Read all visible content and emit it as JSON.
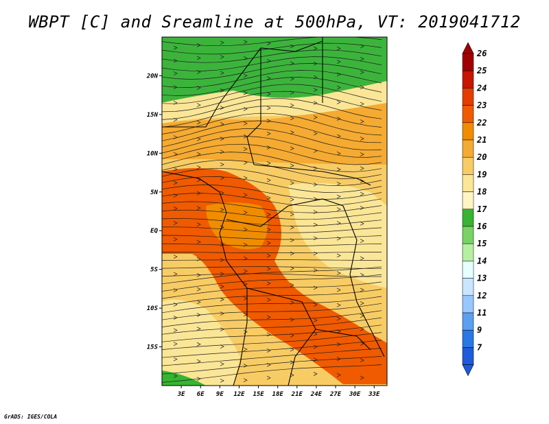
{
  "title": "WBPT [C] and Sreamline at 500hPa, VT: 2019041712",
  "footer": "GrADS: IGES/COLA",
  "map": {
    "lon_range": [
      0,
      35
    ],
    "lat_range": [
      -20,
      25
    ],
    "lat_ticks": [
      {
        "value": 20,
        "label": "20N"
      },
      {
        "value": 15,
        "label": "15N"
      },
      {
        "value": 10,
        "label": "10N"
      },
      {
        "value": 5,
        "label": "5N"
      },
      {
        "value": 0,
        "label": "EQ"
      },
      {
        "value": -5,
        "label": "5S"
      },
      {
        "value": -10,
        "label": "10S"
      },
      {
        "value": -15,
        "label": "15S"
      }
    ],
    "lon_ticks": [
      {
        "value": 3,
        "label": "3E"
      },
      {
        "value": 6,
        "label": "6E"
      },
      {
        "value": 9,
        "label": "9E"
      },
      {
        "value": 12,
        "label": "12E"
      },
      {
        "value": 15,
        "label": "15E"
      },
      {
        "value": 18,
        "label": "18E"
      },
      {
        "value": 21,
        "label": "21E"
      },
      {
        "value": 24,
        "label": "24E"
      },
      {
        "value": 27,
        "label": "27E"
      },
      {
        "value": 30,
        "label": "30E"
      },
      {
        "value": 33,
        "label": "33E"
      }
    ]
  },
  "colorbar": {
    "labels": [
      "26",
      "25",
      "24",
      "23",
      "22",
      "21",
      "20",
      "19",
      "18",
      "17",
      "16",
      "15",
      "14",
      "13",
      "12",
      "11",
      "9",
      "7"
    ],
    "colors": [
      "#a00000",
      "#c81400",
      "#e63c00",
      "#f05a00",
      "#f08c00",
      "#f5aa32",
      "#f8cc64",
      "#fae696",
      "#fff5c3",
      "#37b432",
      "#78d264",
      "#b4f0a0",
      "#e6ffff",
      "#c8e6ff",
      "#96c8ff",
      "#5aa0f0",
      "#2878e6",
      "#1e5adc"
    ]
  },
  "icons": {
    "arrow": "streamline-arrow-icon"
  }
}
